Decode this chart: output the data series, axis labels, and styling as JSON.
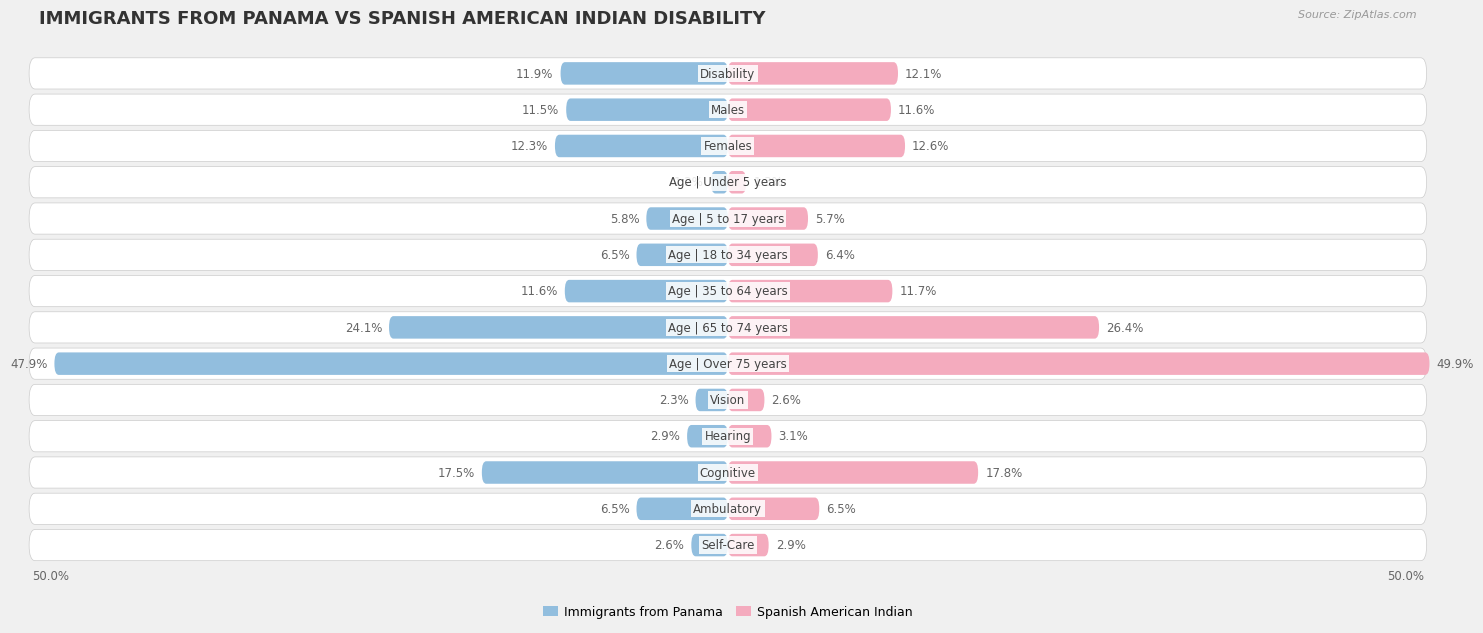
{
  "title": "IMMIGRANTS FROM PANAMA VS SPANISH AMERICAN INDIAN DISABILITY",
  "source": "Source: ZipAtlas.com",
  "categories": [
    "Disability",
    "Males",
    "Females",
    "Age | Under 5 years",
    "Age | 5 to 17 years",
    "Age | 18 to 34 years",
    "Age | 35 to 64 years",
    "Age | 65 to 74 years",
    "Age | Over 75 years",
    "Vision",
    "Hearing",
    "Cognitive",
    "Ambulatory",
    "Self-Care"
  ],
  "left_values": [
    11.9,
    11.5,
    12.3,
    1.2,
    5.8,
    6.5,
    11.6,
    24.1,
    47.9,
    2.3,
    2.9,
    17.5,
    6.5,
    2.6
  ],
  "right_values": [
    12.1,
    11.6,
    12.6,
    1.3,
    5.7,
    6.4,
    11.7,
    26.4,
    49.9,
    2.6,
    3.1,
    17.8,
    6.5,
    2.9
  ],
  "max_val": 50.0,
  "left_color": "#92bede",
  "right_color": "#f4abbe",
  "left_label": "Immigrants from Panama",
  "right_label": "Spanish American Indian",
  "bg_color": "#f0f0f0",
  "row_bg": "#e8e8e8",
  "title_fontsize": 13,
  "label_fontsize": 8.5,
  "value_fontsize": 8.5,
  "source_fontsize": 8
}
